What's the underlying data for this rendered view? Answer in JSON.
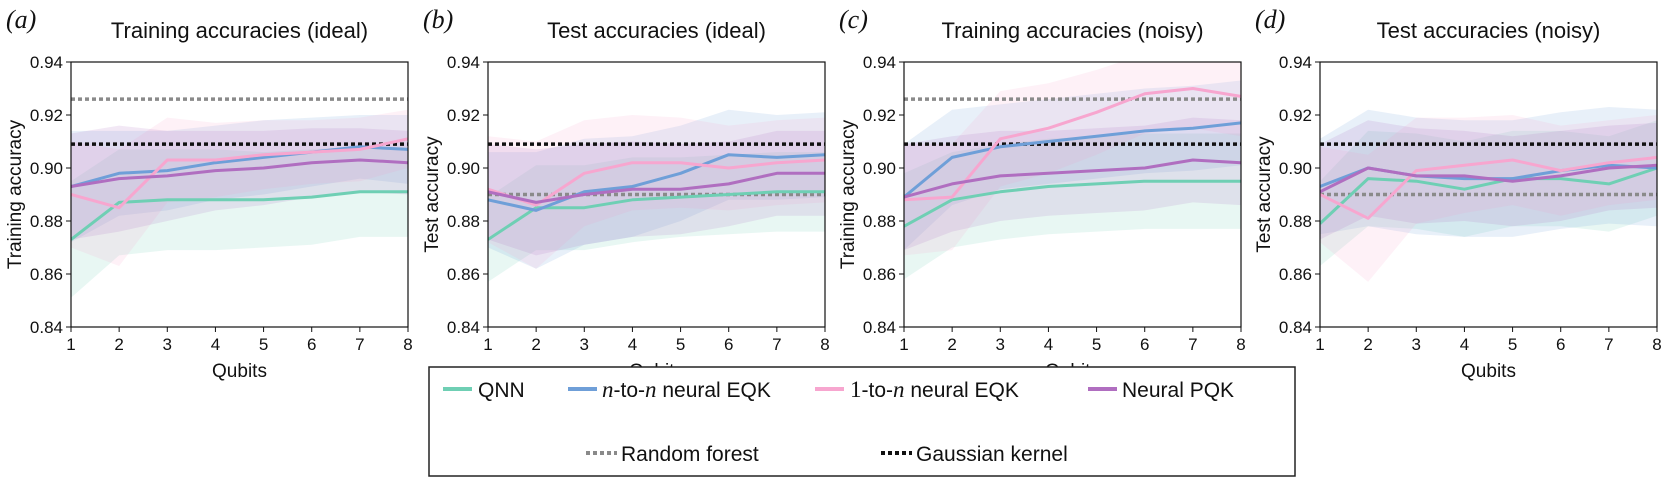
{
  "chart_data": [
    {
      "type": "line",
      "panel_label": "(a)",
      "title": "Training accuracies (ideal)",
      "xlabel": "Qubits",
      "ylabel": "Training accuracy",
      "x": [
        1,
        2,
        3,
        4,
        5,
        6,
        7,
        8
      ],
      "xlim": [
        1,
        8
      ],
      "ylim": [
        0.84,
        0.94
      ],
      "yticks": [
        "0.84",
        "0.86",
        "0.88",
        "0.90",
        "0.92",
        "0.94"
      ],
      "xticks": [
        "1",
        "2",
        "3",
        "4",
        "5",
        "6",
        "7",
        "8"
      ],
      "series": [
        {
          "name": "QNN",
          "color": "#6fcfb4",
          "values": [
            0.873,
            0.887,
            0.888,
            0.888,
            0.888,
            0.889,
            0.891,
            0.891
          ],
          "band": [
            0.022,
            0.02,
            0.019,
            0.019,
            0.018,
            0.018,
            0.017,
            0.017
          ]
        },
        {
          "name": "n-to-n neural EQK",
          "color": "#6f9fd8",
          "values": [
            0.893,
            0.898,
            0.899,
            0.902,
            0.904,
            0.906,
            0.908,
            0.907
          ],
          "band": [
            0.021,
            0.016,
            0.015,
            0.014,
            0.014,
            0.013,
            0.012,
            0.013
          ]
        },
        {
          "name": "1-to-n neural EQK",
          "color": "#f7a6cf",
          "values": [
            0.89,
            0.885,
            0.903,
            0.903,
            0.905,
            0.906,
            0.907,
            0.911
          ],
          "band": [
            0.02,
            0.022,
            0.016,
            0.014,
            0.013,
            0.012,
            0.012,
            0.011
          ]
        },
        {
          "name": "Neural PQK",
          "color": "#b06ec0",
          "values": [
            0.893,
            0.896,
            0.897,
            0.899,
            0.9,
            0.902,
            0.903,
            0.902
          ],
          "band": [
            0.02,
            0.02,
            0.017,
            0.015,
            0.014,
            0.013,
            0.012,
            0.012
          ]
        }
      ],
      "hlines": [
        {
          "name": "Random forest",
          "value": 0.926,
          "color": "#8a8a8a"
        },
        {
          "name": "Gaussian kernel",
          "value": 0.909,
          "color": "#111111"
        }
      ]
    },
    {
      "type": "line",
      "panel_label": "(b)",
      "title": "Test accuracies (ideal)",
      "xlabel": "Qubits",
      "ylabel": "Test accuracy",
      "x": [
        1,
        2,
        3,
        4,
        5,
        6,
        7,
        8
      ],
      "xlim": [
        1,
        8
      ],
      "ylim": [
        0.84,
        0.94
      ],
      "yticks": [
        "0.84",
        "0.86",
        "0.88",
        "0.90",
        "0.92",
        "0.94"
      ],
      "xticks": [
        "1",
        "2",
        "3",
        "4",
        "5",
        "6",
        "7",
        "8"
      ],
      "series": [
        {
          "name": "QNN",
          "color": "#6fcfb4",
          "values": [
            0.873,
            0.885,
            0.885,
            0.888,
            0.889,
            0.89,
            0.891,
            0.891
          ],
          "band": [
            0.016,
            0.016,
            0.016,
            0.016,
            0.015,
            0.015,
            0.015,
            0.015
          ]
        },
        {
          "name": "n-to-n neural EQK",
          "color": "#6f9fd8",
          "values": [
            0.888,
            0.884,
            0.891,
            0.893,
            0.898,
            0.905,
            0.904,
            0.905
          ],
          "band": [
            0.018,
            0.022,
            0.02,
            0.019,
            0.018,
            0.017,
            0.016,
            0.016
          ]
        },
        {
          "name": "1-to-n neural EQK",
          "color": "#f7a6cf",
          "values": [
            0.892,
            0.886,
            0.898,
            0.902,
            0.902,
            0.9,
            0.902,
            0.903
          ],
          "band": [
            0.02,
            0.024,
            0.02,
            0.018,
            0.017,
            0.016,
            0.016,
            0.016
          ]
        },
        {
          "name": "Neural PQK",
          "color": "#b06ec0",
          "values": [
            0.891,
            0.887,
            0.89,
            0.892,
            0.892,
            0.894,
            0.898,
            0.898
          ],
          "band": [
            0.018,
            0.02,
            0.019,
            0.018,
            0.017,
            0.016,
            0.016,
            0.016
          ]
        }
      ],
      "hlines": [
        {
          "name": "Random forest",
          "value": 0.89,
          "color": "#8a8a8a"
        },
        {
          "name": "Gaussian kernel",
          "value": 0.909,
          "color": "#111111"
        }
      ]
    },
    {
      "type": "line",
      "panel_label": "(c)",
      "title": "Training accuracies (noisy)",
      "xlabel": "Qubits",
      "ylabel": "Training accuracy",
      "x": [
        1,
        2,
        3,
        4,
        5,
        6,
        7,
        8
      ],
      "xlim": [
        1,
        8
      ],
      "ylim": [
        0.84,
        0.94
      ],
      "yticks": [
        "0.84",
        "0.86",
        "0.88",
        "0.90",
        "0.92",
        "0.94"
      ],
      "xticks": [
        "1",
        "2",
        "3",
        "4",
        "5",
        "6",
        "7",
        "8"
      ],
      "series": [
        {
          "name": "QNN",
          "color": "#6fcfb4",
          "values": [
            0.878,
            0.888,
            0.891,
            0.893,
            0.894,
            0.895,
            0.895,
            0.895
          ],
          "band": [
            0.02,
            0.018,
            0.018,
            0.018,
            0.018,
            0.018,
            0.018,
            0.018
          ]
        },
        {
          "name": "n-to-n neural EQK",
          "color": "#6f9fd8",
          "values": [
            0.889,
            0.904,
            0.908,
            0.91,
            0.912,
            0.914,
            0.915,
            0.917
          ],
          "band": [
            0.02,
            0.018,
            0.016,
            0.016,
            0.016,
            0.016,
            0.016,
            0.016
          ]
        },
        {
          "name": "1-to-n neural EQK",
          "color": "#f7a6cf",
          "values": [
            0.888,
            0.889,
            0.911,
            0.915,
            0.921,
            0.928,
            0.93,
            0.927
          ],
          "band": [
            0.021,
            0.02,
            0.018,
            0.017,
            0.016,
            0.015,
            0.015,
            0.015
          ]
        },
        {
          "name": "Neural PQK",
          "color": "#b06ec0",
          "values": [
            0.889,
            0.894,
            0.897,
            0.898,
            0.899,
            0.9,
            0.903,
            0.902
          ],
          "band": [
            0.02,
            0.018,
            0.017,
            0.016,
            0.016,
            0.016,
            0.016,
            0.016
          ]
        }
      ],
      "hlines": [
        {
          "name": "Random forest",
          "value": 0.926,
          "color": "#8a8a8a"
        },
        {
          "name": "Gaussian kernel",
          "value": 0.909,
          "color": "#111111"
        }
      ]
    },
    {
      "type": "line",
      "panel_label": "(d)",
      "title": "Test accuracies (noisy)",
      "xlabel": "Qubits",
      "ylabel": "Test accuracy",
      "x": [
        1,
        2,
        3,
        4,
        5,
        6,
        7,
        8
      ],
      "xlim": [
        1,
        8
      ],
      "ylim": [
        0.84,
        0.94
      ],
      "yticks": [
        "0.84",
        "0.86",
        "0.88",
        "0.90",
        "0.92",
        "0.94"
      ],
      "xticks": [
        "1",
        "2",
        "3",
        "4",
        "5",
        "6",
        "7",
        "8"
      ],
      "series": [
        {
          "name": "QNN",
          "color": "#6fcfb4",
          "values": [
            0.879,
            0.896,
            0.895,
            0.892,
            0.896,
            0.896,
            0.894,
            0.9
          ],
          "band": [
            0.016,
            0.018,
            0.018,
            0.018,
            0.018,
            0.018,
            0.018,
            0.018
          ]
        },
        {
          "name": "n-to-n neural EQK",
          "color": "#6f9fd8",
          "values": [
            0.893,
            0.9,
            0.897,
            0.896,
            0.896,
            0.899,
            0.901,
            0.9
          ],
          "band": [
            0.018,
            0.022,
            0.022,
            0.022,
            0.022,
            0.022,
            0.022,
            0.022
          ]
        },
        {
          "name": "1-to-n neural EQK",
          "color": "#f7a6cf",
          "values": [
            0.89,
            0.881,
            0.899,
            0.901,
            0.903,
            0.899,
            0.902,
            0.904
          ],
          "band": [
            0.018,
            0.024,
            0.02,
            0.018,
            0.017,
            0.017,
            0.016,
            0.016
          ]
        },
        {
          "name": "Neural PQK",
          "color": "#b06ec0",
          "values": [
            0.891,
            0.9,
            0.897,
            0.897,
            0.895,
            0.897,
            0.9,
            0.901
          ],
          "band": [
            0.018,
            0.018,
            0.018,
            0.017,
            0.017,
            0.017,
            0.016,
            0.016
          ]
        }
      ],
      "hlines": [
        {
          "name": "Random forest",
          "value": 0.89,
          "color": "#8a8a8a"
        },
        {
          "name": "Gaussian kernel",
          "value": 0.909,
          "color": "#111111"
        }
      ]
    }
  ],
  "legend": {
    "entries": [
      {
        "key": "qnn",
        "label": "QNN",
        "color": "#6fcfb4",
        "style": "solid"
      },
      {
        "key": "n-to-n-neural-eqk",
        "math": "n",
        "label_mid": "-to-",
        "math2": "n",
        "label": " neural EQK",
        "color": "#6f9fd8",
        "style": "solid"
      },
      {
        "key": "1-to-n-neural-eqk",
        "math": "1",
        "label_mid": "-to-",
        "math2": "n",
        "label": " neural EQK",
        "color": "#f7a6cf",
        "style": "solid"
      },
      {
        "key": "neural-pqk",
        "label": "Neural PQK",
        "color": "#b06ec0",
        "style": "solid"
      },
      {
        "key": "random-forest",
        "label": "Random forest",
        "color": "#8a8a8a",
        "style": "dotted"
      },
      {
        "key": "gaussian-kernel",
        "label": "Gaussian kernel",
        "color": "#111111",
        "style": "dotted"
      }
    ]
  }
}
